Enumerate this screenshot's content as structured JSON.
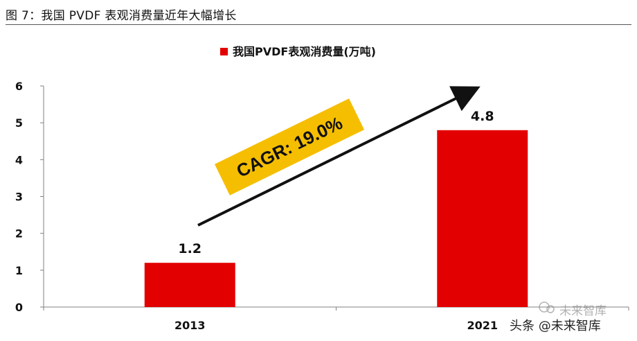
{
  "figure": {
    "title": "图 7：我国 PVDF 表观消费量近年大幅增长"
  },
  "chart_data": {
    "type": "bar",
    "title": "我国PVDF表观消费量(万吨)",
    "legend": {
      "label": "我国PVDF表观消费量(万吨)",
      "position": "top-center"
    },
    "categories": [
      "2013",
      "2021"
    ],
    "series": [
      {
        "name": "我国PVDF表观消费量(万吨)",
        "values": [
          1.2,
          4.8
        ],
        "labels": [
          "1.2",
          "4.8"
        ]
      }
    ],
    "ylim": [
      0,
      6
    ],
    "yticks": [
      0,
      1,
      2,
      3,
      4,
      5,
      6
    ],
    "xlabel": "",
    "ylabel": "",
    "grid": false,
    "annotation": {
      "text": "CAGR: 19.0%"
    }
  },
  "colors": {
    "bar": "#e30000",
    "annotation_bg": "#f5be00",
    "arrow": "#111111",
    "axis": "#808080"
  },
  "watermark": {
    "logo_text": "未来智库",
    "caption": "头条 @未来智库"
  }
}
